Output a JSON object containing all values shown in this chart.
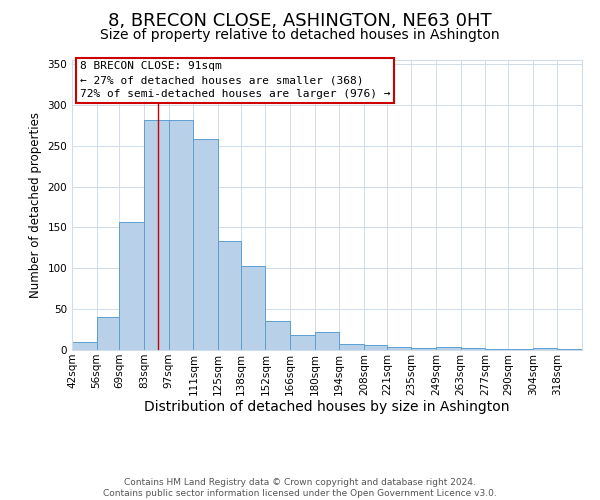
{
  "title": "8, BRECON CLOSE, ASHINGTON, NE63 0HT",
  "subtitle": "Size of property relative to detached houses in Ashington",
  "xlabel": "Distribution of detached houses by size in Ashington",
  "ylabel": "Number of detached properties",
  "categories": [
    "42sqm",
    "56sqm",
    "69sqm",
    "83sqm",
    "97sqm",
    "111sqm",
    "125sqm",
    "138sqm",
    "152sqm",
    "166sqm",
    "180sqm",
    "194sqm",
    "208sqm",
    "221sqm",
    "235sqm",
    "249sqm",
    "263sqm",
    "277sqm",
    "290sqm",
    "304sqm",
    "318sqm"
  ],
  "values": [
    10,
    41,
    157,
    281,
    282,
    258,
    133,
    103,
    36,
    18,
    22,
    7,
    6,
    4,
    3,
    4,
    2,
    1,
    1,
    3,
    1
  ],
  "bar_color": "#b8d0e8",
  "bar_edge_color": "#5a9fd4",
  "bar_edge_width": 0.7,
  "annotation_box_text": "8 BRECON CLOSE: 91sqm\n← 27% of detached houses are smaller (368)\n72% of semi-detached houses are larger (976) →",
  "annotation_box_color": "#ffffff",
  "annotation_box_edge_color": "#cc0000",
  "red_line_x": 91,
  "ylim": [
    0,
    355
  ],
  "yticks": [
    0,
    50,
    100,
    150,
    200,
    250,
    300,
    350
  ],
  "title_fontsize": 13,
  "subtitle_fontsize": 10,
  "xlabel_fontsize": 10,
  "ylabel_fontsize": 8.5,
  "tick_fontsize": 7.5,
  "annotation_fontsize": 8,
  "footer_text": "Contains HM Land Registry data © Crown copyright and database right 2024.\nContains public sector information licensed under the Open Government Licence v3.0.",
  "footer_fontsize": 6.5,
  "bg_color": "#ffffff",
  "grid_color": "#d0dce8",
  "bin_edges": [
    42,
    56,
    69,
    83,
    97,
    111,
    125,
    138,
    152,
    166,
    180,
    194,
    208,
    221,
    235,
    249,
    263,
    277,
    290,
    304,
    318,
    332
  ]
}
